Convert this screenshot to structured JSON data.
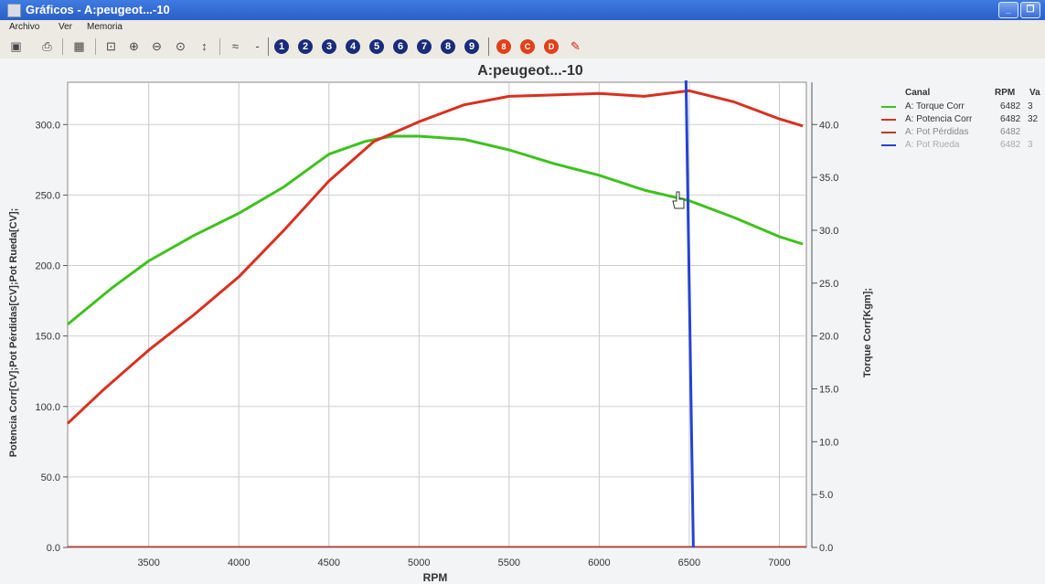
{
  "window": {
    "title": "Gráficos - A:peugeot...-10",
    "minimize_label": "_",
    "restore_label": "❐"
  },
  "menu": [
    "Archivo",
    "Ver",
    "Memoria"
  ],
  "toolbar": {
    "numbers": [
      "1",
      "2",
      "3",
      "4",
      "5",
      "6",
      "7",
      "8",
      "9"
    ],
    "red_buttons": [
      "8",
      "C",
      "D"
    ],
    "icons": [
      "open-icon",
      "print-icon",
      "grid-icon",
      "zoom-fit-icon",
      "zoom-in-icon",
      "zoom-out-icon",
      "zoom-region-icon",
      "axis-icon",
      "wave-icon",
      "minus-icon"
    ]
  },
  "legend": {
    "headers": {
      "channel": "Canal",
      "rpm": "RPM",
      "value": "Va"
    },
    "rows": [
      {
        "name": "A: Torque Corr",
        "rpm": "6482",
        "value": "3",
        "color": "#3ec21d"
      },
      {
        "name": "A: Potencia Corr",
        "rpm": "6482",
        "value": "32",
        "color": "#d9301f"
      },
      {
        "name": "A: Pot Pérdidas",
        "rpm": "6482",
        "value": "",
        "color": "#b83a2a"
      },
      {
        "name": "A: Pot Rueda",
        "rpm": "6482",
        "value": "3",
        "color": "#2443d6"
      }
    ]
  },
  "colors": {
    "torque": "#3ec21d",
    "power": "#d9301f",
    "cursor": "#2443d6"
  },
  "chart_data": {
    "type": "line",
    "title": "A:peugeot...-10",
    "xlabel": "RPM",
    "ylabel_left": "Potencia Corr[CV];Pot Pérdidas[CV];Pot Rueda[CV];",
    "ylabel_right": "Torque Corr[Kgm];",
    "xlim": [
      3050,
      7150
    ],
    "ylim_left": [
      0,
      330
    ],
    "ylim_right": [
      0,
      44
    ],
    "x_ticks": [
      3500,
      4000,
      4500,
      5000,
      5500,
      6000,
      6500,
      7000
    ],
    "x_tick_labels": [
      "3500",
      "4000",
      "4500",
      "5000",
      "5500",
      "6000",
      "6500",
      "7000"
    ],
    "y_left_ticks": [
      0,
      50,
      100,
      150,
      200,
      250,
      300
    ],
    "y_left_tick_labels": [
      "0.0",
      "50.0",
      "100.0",
      "150.0",
      "200.0",
      "250.0",
      "300.0"
    ],
    "y_right_ticks": [
      0,
      5,
      10,
      15,
      20,
      25,
      30,
      35,
      40
    ],
    "y_right_tick_labels": [
      "0.0",
      "5.0",
      "10.0",
      "15.0",
      "20.0",
      "25.0",
      "30.0",
      "35.0",
      "40.0"
    ],
    "grid": true,
    "legend_position": "right",
    "cursor_x": 6482,
    "series": [
      {
        "name": "A: Torque Corr",
        "axis": "right",
        "x": [
          3050,
          3300,
          3500,
          3750,
          4000,
          4250,
          4500,
          4700,
          4850,
          5000,
          5250,
          5500,
          5750,
          6000,
          6250,
          6500,
          6750,
          7000,
          7130
        ],
        "y": [
          21.1,
          24.6,
          27.1,
          29.5,
          31.6,
          34.1,
          37.2,
          38.4,
          38.9,
          38.9,
          38.6,
          37.6,
          36.3,
          35.2,
          33.8,
          32.8,
          31.2,
          29.4,
          28.7
        ]
      },
      {
        "name": "A: Potencia Corr",
        "axis": "left",
        "x": [
          3050,
          3250,
          3500,
          3750,
          4000,
          4250,
          4500,
          4750,
          5000,
          5250,
          5500,
          5750,
          6000,
          6250,
          6500,
          6750,
          7000,
          7130
        ],
        "y": [
          88,
          112,
          140,
          165,
          192,
          225,
          260,
          288,
          302,
          314,
          320,
          321,
          322,
          320,
          324,
          316,
          304,
          299
        ]
      },
      {
        "name": "A: Pot Pérdidas",
        "axis": "left",
        "x": [
          3050,
          7150
        ],
        "y": [
          0.5,
          0.5
        ]
      }
    ]
  }
}
